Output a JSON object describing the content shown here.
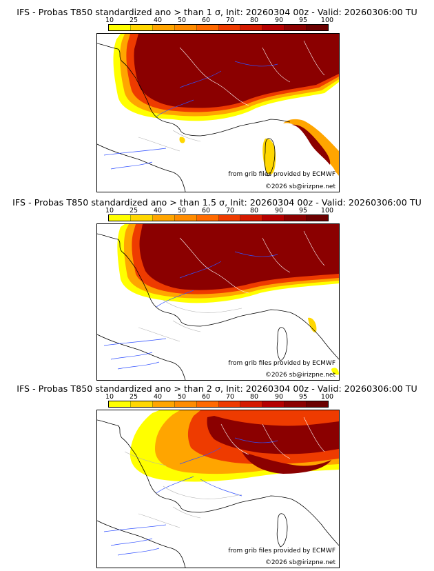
{
  "colors": {
    "scale": [
      "#ffff00",
      "#ffd700",
      "#ffa500",
      "#ff8c00",
      "#ff6a00",
      "#ee3b00",
      "#d41a00",
      "#b40000",
      "#8b0000",
      "#6b0000"
    ],
    "coast": "#000000",
    "rivers": "#3050ff",
    "borders": "#ffffff",
    "land_borders_south": "#b0b0b0"
  },
  "colorbar": {
    "ticks": [
      "10",
      "25",
      "40",
      "50",
      "60",
      "70",
      "80",
      "90",
      "95",
      "100"
    ]
  },
  "panels": [
    {
      "title": "IFS - Probas T850  standardized ano > than 1 σ, Init: 20260304 00z - Valid: 20260306:00 TU",
      "credit_source": "from grib files provided by ECMWF",
      "credit_copyright": "©2026 sb@irizpne.net"
    },
    {
      "title": "IFS - Probas T850  standardized ano > than 1.5 σ, Init: 20260304 00z - Valid: 20260306:00 TU",
      "credit_source": "from grib files provided by ECMWF",
      "credit_copyright": "©2026 sb@irizpne.net"
    },
    {
      "title": "IFS - Probas T850  standardized ano > than 2 σ, Init: 20260304 00z - Valid: 20260306:00 TU",
      "credit_source": "from grib files provided by ECMWF",
      "credit_copyright": "©2026 sb@irizpne.net"
    }
  ]
}
